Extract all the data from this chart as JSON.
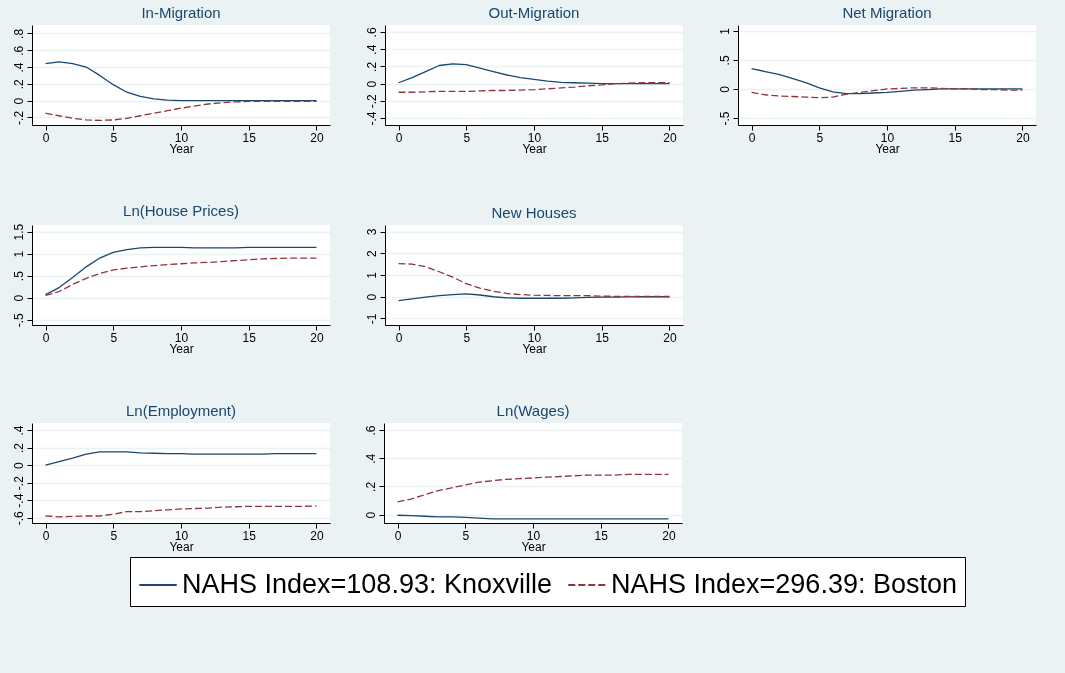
{
  "chart_data": [
    {
      "type": "line",
      "title": "In-Migration",
      "xlabel": "Year",
      "x": [
        0,
        1,
        2,
        3,
        4,
        5,
        6,
        7,
        8,
        9,
        10,
        11,
        12,
        13,
        14,
        15,
        16,
        17,
        18,
        19,
        20
      ],
      "xlim": [
        -1,
        21
      ],
      "xticks": [
        0,
        5,
        10,
        15,
        20
      ],
      "ylim": [
        -0.29,
        0.9
      ],
      "yticks": [
        {
          "value": -0.2,
          "label": "-.2"
        },
        0,
        {
          "value": 0.2,
          "label": ".2"
        },
        {
          "value": 0.4,
          "label": ".4"
        },
        {
          "value": 0.6,
          "label": ".6"
        },
        {
          "value": 0.8,
          "label": ".8"
        }
      ],
      "grid": "y",
      "legend": "bottom",
      "marker": "none",
      "series": [
        {
          "name": "NAHS Index=108.93: Knoxville",
          "color": "#1a476f",
          "line_style": "solid",
          "values": [
            0.44,
            0.46,
            0.44,
            0.4,
            0.3,
            0.19,
            0.1,
            0.05,
            0.02,
            0.005,
            0,
            0,
            0,
            0,
            0,
            0,
            0,
            0,
            0,
            0,
            0
          ]
        },
        {
          "name": "NAHS Index=296.39: Boston",
          "color": "#90353b",
          "line_style": "dashed",
          "values": [
            -0.15,
            -0.18,
            -0.21,
            -0.23,
            -0.235,
            -0.23,
            -0.21,
            -0.18,
            -0.15,
            -0.12,
            -0.09,
            -0.065,
            -0.04,
            -0.025,
            -0.015,
            -0.01,
            -0.008,
            -0.01,
            -0.01,
            -0.01,
            -0.01
          ]
        }
      ]
    },
    {
      "type": "line",
      "title": "Out-Migration",
      "xlabel": "Year",
      "x": [
        0,
        1,
        2,
        3,
        4,
        5,
        6,
        7,
        8,
        9,
        10,
        11,
        12,
        13,
        14,
        15,
        16,
        17,
        18,
        19,
        20
      ],
      "xlim": [
        -1,
        21
      ],
      "xticks": [
        0,
        5,
        10,
        15,
        20
      ],
      "ylim": [
        -0.48,
        0.68
      ],
      "yticks": [
        {
          "value": -0.4,
          "label": "-.4"
        },
        {
          "value": -0.2,
          "label": "-.2"
        },
        0,
        {
          "value": 0.2,
          "label": ".2"
        },
        {
          "value": 0.4,
          "label": ".4"
        },
        {
          "value": 0.6,
          "label": ".6"
        }
      ],
      "grid": "y",
      "legend": "bottom",
      "marker": "none",
      "series": [
        {
          "name": "NAHS Index=108.93: Knoxville",
          "color": "#1a476f",
          "line_style": "solid",
          "values": [
            0.01,
            0.07,
            0.14,
            0.21,
            0.23,
            0.22,
            0.18,
            0.14,
            0.1,
            0.07,
            0.05,
            0.03,
            0.015,
            0.01,
            0.005,
            0,
            0,
            0,
            0,
            0,
            0
          ]
        },
        {
          "name": "NAHS Index=296.39: Boston",
          "color": "#90353b",
          "line_style": "dashed",
          "values": [
            -0.1,
            -0.1,
            -0.095,
            -0.09,
            -0.09,
            -0.09,
            -0.085,
            -0.08,
            -0.08,
            -0.075,
            -0.07,
            -0.06,
            -0.05,
            -0.04,
            -0.025,
            -0.015,
            0,
            0.005,
            0.01,
            0.01,
            0.01
          ]
        }
      ]
    },
    {
      "type": "line",
      "title": "Net Migration",
      "xlabel": "Year",
      "x": [
        0,
        1,
        2,
        3,
        4,
        5,
        6,
        7,
        8,
        9,
        10,
        11,
        12,
        13,
        14,
        15,
        16,
        17,
        18,
        19,
        20
      ],
      "xlim": [
        -1,
        21
      ],
      "xticks": [
        0,
        5,
        10,
        15,
        20
      ],
      "ylim": [
        -0.62,
        1.1
      ],
      "yticks": [
        {
          "value": -0.5,
          "label": "-.5"
        },
        0,
        {
          "value": 0.5,
          "label": ".5"
        },
        1
      ],
      "grid": "y",
      "legend": "bottom",
      "marker": "none",
      "series": [
        {
          "name": "NAHS Index=108.93: Knoxville",
          "color": "#1a476f",
          "line_style": "solid",
          "values": [
            0.35,
            0.3,
            0.25,
            0.18,
            0.11,
            0.02,
            -0.05,
            -0.08,
            -0.08,
            -0.07,
            -0.06,
            -0.04,
            -0.02,
            -0.01,
            0,
            0,
            0,
            0,
            0,
            0,
            0
          ]
        },
        {
          "name": "NAHS Index=296.39: Boston",
          "color": "#90353b",
          "line_style": "dashed",
          "values": [
            -0.06,
            -0.1,
            -0.12,
            -0.13,
            -0.14,
            -0.15,
            -0.14,
            -0.09,
            -0.06,
            -0.03,
            0,
            0.01,
            0.02,
            0.02,
            0.01,
            0,
            0,
            -0.01,
            -0.01,
            -0.02,
            -0.02
          ]
        }
      ]
    },
    {
      "type": "line",
      "title": "Ln(House Prices)",
      "xlabel": "Year",
      "x": [
        0,
        1,
        2,
        3,
        4,
        5,
        6,
        7,
        8,
        9,
        10,
        11,
        12,
        13,
        14,
        15,
        16,
        17,
        18,
        19,
        20
      ],
      "xlim": [
        -1,
        21
      ],
      "xticks": [
        0,
        5,
        10,
        15,
        20
      ],
      "ylim": [
        -0.62,
        1.65
      ],
      "yticks": [
        {
          "value": -0.5,
          "label": "-.5"
        },
        0,
        {
          "value": 0.5,
          "label": ".5"
        },
        1,
        {
          "value": 1.5,
          "label": "1.5"
        }
      ],
      "grid": "y",
      "legend": "bottom",
      "marker": "none",
      "series": [
        {
          "name": "NAHS Index=108.93: Knoxville",
          "color": "#1a476f",
          "line_style": "solid",
          "values": [
            0.07,
            0.23,
            0.46,
            0.7,
            0.9,
            1.03,
            1.09,
            1.13,
            1.14,
            1.14,
            1.14,
            1.13,
            1.13,
            1.13,
            1.13,
            1.14,
            1.14,
            1.14,
            1.14,
            1.14,
            1.14
          ]
        },
        {
          "name": "NAHS Index=296.39: Boston",
          "color": "#90353b",
          "line_style": "dashed",
          "values": [
            0.05,
            0.14,
            0.3,
            0.44,
            0.55,
            0.63,
            0.67,
            0.7,
            0.73,
            0.75,
            0.77,
            0.79,
            0.8,
            0.82,
            0.84,
            0.86,
            0.88,
            0.89,
            0.9,
            0.9,
            0.9
          ]
        }
      ]
    },
    {
      "type": "line",
      "title": "New Houses",
      "xlabel": "Year",
      "x": [
        0,
        1,
        2,
        3,
        4,
        5,
        6,
        7,
        8,
        9,
        10,
        11,
        12,
        13,
        14,
        15,
        16,
        17,
        18,
        19,
        20
      ],
      "xlim": [
        -1,
        21
      ],
      "xticks": [
        0,
        5,
        10,
        15,
        20
      ],
      "ylim": [
        -1.3,
        3.3
      ],
      "yticks": [
        -1,
        0,
        1,
        2,
        3
      ],
      "grid": "y",
      "legend": "bottom",
      "marker": "none",
      "series": [
        {
          "name": "NAHS Index=108.93: Knoxville",
          "color": "#1a476f",
          "line_style": "solid",
          "values": [
            -0.18,
            -0.1,
            -0.02,
            0.05,
            0.1,
            0.13,
            0.08,
            0,
            -0.05,
            -0.07,
            -0.07,
            -0.07,
            -0.07,
            -0.05,
            -0.03,
            -0.02,
            -0.02,
            -0.01,
            0,
            0,
            0
          ]
        },
        {
          "name": "NAHS Index=296.39: Boston",
          "color": "#90353b",
          "line_style": "dashed",
          "values": [
            1.52,
            1.5,
            1.38,
            1.15,
            0.9,
            0.6,
            0.4,
            0.25,
            0.15,
            0.1,
            0.07,
            0.06,
            0.05,
            0.05,
            0.05,
            0.03,
            0.02,
            0.02,
            0.01,
            0.01,
            0.01
          ]
        }
      ]
    },
    {
      "type": "line",
      "title": "Ln(Employment)",
      "xlabel": "Year",
      "x": [
        0,
        1,
        2,
        3,
        4,
        5,
        6,
        7,
        8,
        9,
        10,
        11,
        12,
        13,
        14,
        15,
        16,
        17,
        18,
        19,
        20
      ],
      "xlim": [
        -1,
        21
      ],
      "xticks": [
        0,
        5,
        10,
        15,
        20
      ],
      "ylim": [
        -0.66,
        0.48
      ],
      "yticks": [
        {
          "value": -0.6,
          "label": "-.6"
        },
        {
          "value": -0.4,
          "label": "-.4"
        },
        {
          "value": -0.2,
          "label": "-.2"
        },
        0,
        {
          "value": 0.2,
          "label": ".2"
        },
        {
          "value": 0.4,
          "label": ".4"
        }
      ],
      "grid": "y",
      "legend": "bottom",
      "marker": "none",
      "series": [
        {
          "name": "NAHS Index=108.93: Knoxville",
          "color": "#1a476f",
          "line_style": "solid",
          "values": [
            0,
            0.04,
            0.08,
            0.125,
            0.15,
            0.15,
            0.15,
            0.14,
            0.135,
            0.13,
            0.13,
            0.125,
            0.125,
            0.125,
            0.125,
            0.125,
            0.125,
            0.13,
            0.13,
            0.13,
            0.13
          ]
        },
        {
          "name": "NAHS Index=296.39: Boston",
          "color": "#90353b",
          "line_style": "dashed",
          "values": [
            -0.58,
            -0.59,
            -0.585,
            -0.58,
            -0.58,
            -0.56,
            -0.53,
            -0.53,
            -0.52,
            -0.51,
            -0.5,
            -0.495,
            -0.49,
            -0.48,
            -0.475,
            -0.47,
            -0.47,
            -0.47,
            -0.47,
            -0.47,
            -0.465
          ]
        }
      ]
    },
    {
      "type": "line",
      "title": "Ln(Wages)",
      "xlabel": "Year",
      "x": [
        0,
        1,
        2,
        3,
        4,
        5,
        6,
        7,
        8,
        9,
        10,
        11,
        12,
        13,
        14,
        15,
        16,
        17,
        18,
        19,
        20
      ],
      "xlim": [
        -1,
        21
      ],
      "xticks": [
        0,
        5,
        10,
        15,
        20
      ],
      "ylim": [
        -0.06,
        0.65
      ],
      "yticks": [
        0,
        {
          "value": 0.2,
          "label": ".2"
        },
        {
          "value": 0.4,
          "label": ".4"
        },
        {
          "value": 0.6,
          "label": ".6"
        }
      ],
      "grid": "y",
      "legend": "bottom",
      "marker": "none",
      "series": [
        {
          "name": "NAHS Index=108.93: Knoxville",
          "color": "#1a476f",
          "line_style": "solid",
          "values": [
            -0.005,
            -0.008,
            -0.012,
            -0.016,
            -0.017,
            -0.02,
            -0.025,
            -0.03,
            -0.03,
            -0.03,
            -0.03,
            -0.03,
            -0.03,
            -0.03,
            -0.03,
            -0.03,
            -0.03,
            -0.03,
            -0.03,
            -0.03,
            -0.03
          ]
        },
        {
          "name": "NAHS Index=296.39: Boston",
          "color": "#90353b",
          "line_style": "dashed",
          "values": [
            0.09,
            0.11,
            0.14,
            0.17,
            0.19,
            0.21,
            0.23,
            0.24,
            0.25,
            0.255,
            0.26,
            0.265,
            0.27,
            0.275,
            0.28,
            0.28,
            0.28,
            0.285,
            0.285,
            0.285,
            0.285
          ]
        }
      ]
    }
  ]
}
